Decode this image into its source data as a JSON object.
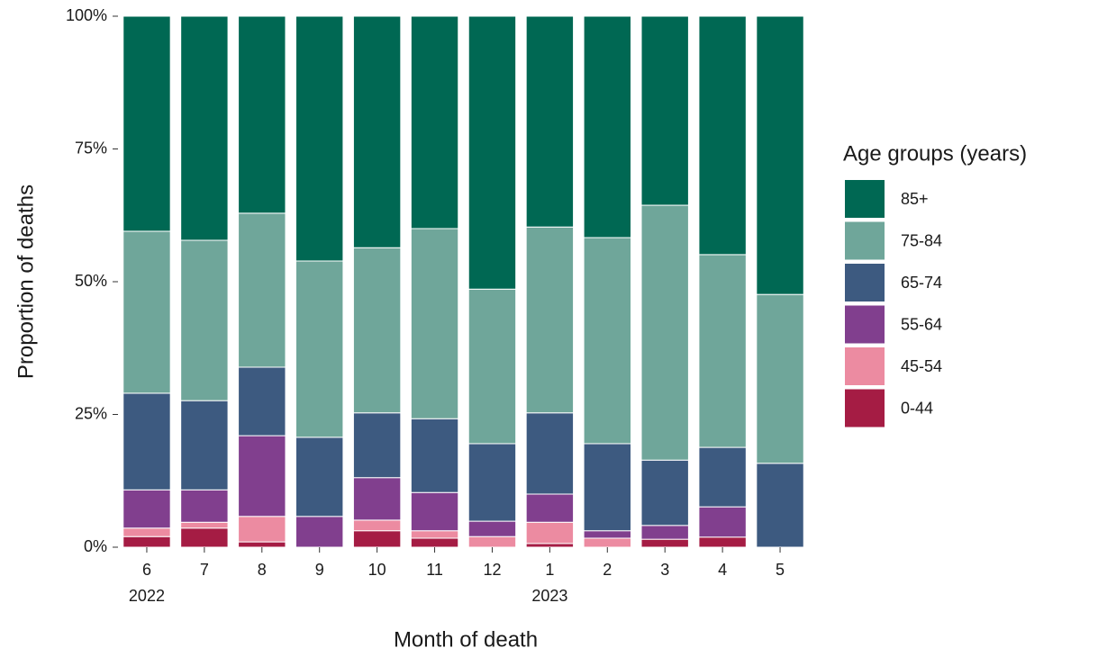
{
  "chart_data": {
    "type": "stacked_bar",
    "y_label": "Proportion of deaths",
    "x_label": "Month of death",
    "legend_title": "Age groups (years)",
    "legend_position": "right",
    "categories": [
      "6",
      "7",
      "8",
      "9",
      "10",
      "11",
      "12",
      "1",
      "2",
      "3",
      "4",
      "5"
    ],
    "year_labels": [
      "2022",
      null,
      null,
      null,
      null,
      null,
      null,
      "2023",
      null,
      null,
      null,
      null
    ],
    "ylim": [
      0,
      100
    ],
    "yticks": [
      {
        "value": 0,
        "label": "0%"
      },
      {
        "value": 25,
        "label": "25%"
      },
      {
        "value": 50,
        "label": "50%"
      },
      {
        "value": 75,
        "label": "75%"
      },
      {
        "value": 100,
        "label": "100%"
      }
    ],
    "series": [
      {
        "name": "0-44",
        "color": "#a51c44",
        "values": [
          2.0,
          3.6,
          1.0,
          0,
          3.1,
          1.7,
          0,
          0.7,
          0,
          1.5,
          1.9,
          0
        ]
      },
      {
        "name": "45-54",
        "color": "#ec8ba1",
        "values": [
          1.6,
          1.1,
          4.8,
          0,
          2.0,
          1.4,
          2.0,
          4.0,
          1.7,
          0,
          0,
          0
        ]
      },
      {
        "name": "55-64",
        "color": "#813f8e",
        "values": [
          7.2,
          6.1,
          15.2,
          5.8,
          8.0,
          7.2,
          2.9,
          5.3,
          1.4,
          2.6,
          5.7,
          0
        ]
      },
      {
        "name": "65-74",
        "color": "#3d5a80",
        "values": [
          18.2,
          16.8,
          12.9,
          14.9,
          12.2,
          13.9,
          14.6,
          15.3,
          16.4,
          12.3,
          11.2,
          15.8
        ]
      },
      {
        "name": "75-84",
        "color": "#6fa69a",
        "values": [
          30.5,
          30.2,
          29.0,
          33.2,
          31.1,
          35.8,
          29.1,
          35.0,
          38.8,
          48.0,
          36.3,
          31.8
        ]
      },
      {
        "name": "85+",
        "color": "#006853",
        "values": [
          40.5,
          42.2,
          37.1,
          46.1,
          43.6,
          40.0,
          51.4,
          39.7,
          41.7,
          35.6,
          44.9,
          52.4
        ]
      }
    ]
  }
}
